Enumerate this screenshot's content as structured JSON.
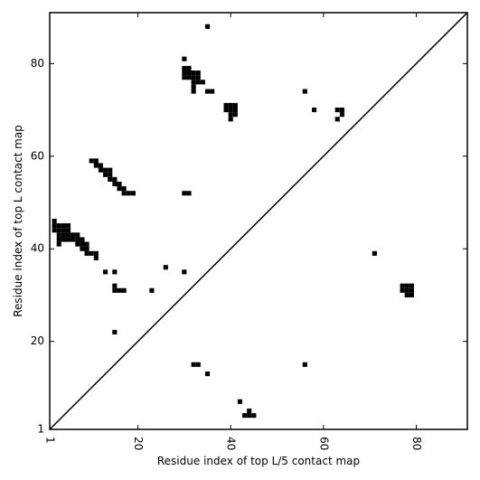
{
  "chart_data": {
    "type": "heatmap",
    "title": "",
    "xlabel": "Residue index of top L/5 contact map",
    "ylabel": "Residue index of top L contact map",
    "xlim": [
      1,
      91
    ],
    "ylim": [
      1,
      91
    ],
    "xticks": [
      1,
      20,
      40,
      60,
      80
    ],
    "yticks": [
      1,
      20,
      40,
      60,
      80
    ],
    "grid": false,
    "legend": "none",
    "diagonal": {
      "from": [
        1,
        1
      ],
      "to": [
        91,
        91
      ]
    },
    "cell_color": "#000000",
    "contacts": [
      [
        35,
        88
      ],
      [
        30,
        81
      ],
      [
        30,
        79
      ],
      [
        31,
        79
      ],
      [
        30,
        78
      ],
      [
        31,
        78
      ],
      [
        32,
        78
      ],
      [
        33,
        78
      ],
      [
        30,
        77
      ],
      [
        31,
        77
      ],
      [
        32,
        77
      ],
      [
        33,
        77
      ],
      [
        32,
        76
      ],
      [
        33,
        76
      ],
      [
        34,
        76
      ],
      [
        32,
        75
      ],
      [
        35,
        74
      ],
      [
        36,
        74
      ],
      [
        32,
        74
      ],
      [
        39,
        71
      ],
      [
        40,
        71
      ],
      [
        41,
        71
      ],
      [
        39,
        70
      ],
      [
        40,
        70
      ],
      [
        41,
        70
      ],
      [
        40,
        69
      ],
      [
        41,
        69
      ],
      [
        40,
        68
      ],
      [
        56,
        74
      ],
      [
        58,
        70
      ],
      [
        63,
        70
      ],
      [
        64,
        70
      ],
      [
        64,
        69
      ],
      [
        63,
        68
      ],
      [
        10,
        59
      ],
      [
        11,
        59
      ],
      [
        11,
        58
      ],
      [
        12,
        58
      ],
      [
        12,
        57
      ],
      [
        13,
        57
      ],
      [
        14,
        57
      ],
      [
        13,
        56
      ],
      [
        14,
        56
      ],
      [
        14,
        55
      ],
      [
        15,
        55
      ],
      [
        15,
        54
      ],
      [
        16,
        54
      ],
      [
        16,
        53
      ],
      [
        17,
        53
      ],
      [
        17,
        52
      ],
      [
        18,
        52
      ],
      [
        19,
        52
      ],
      [
        30,
        52
      ],
      [
        31,
        52
      ],
      [
        2,
        46
      ],
      [
        2,
        45
      ],
      [
        3,
        45
      ],
      [
        4,
        45
      ],
      [
        5,
        45
      ],
      [
        2,
        44
      ],
      [
        3,
        44
      ],
      [
        4,
        44
      ],
      [
        5,
        44
      ],
      [
        3,
        43
      ],
      [
        4,
        43
      ],
      [
        5,
        43
      ],
      [
        6,
        43
      ],
      [
        7,
        43
      ],
      [
        3,
        42
      ],
      [
        4,
        42
      ],
      [
        5,
        42
      ],
      [
        6,
        42
      ],
      [
        7,
        42
      ],
      [
        8,
        42
      ],
      [
        3,
        41
      ],
      [
        7,
        41
      ],
      [
        8,
        41
      ],
      [
        9,
        41
      ],
      [
        8,
        40
      ],
      [
        9,
        40
      ],
      [
        9,
        39
      ],
      [
        10,
        39
      ],
      [
        11,
        39
      ],
      [
        11,
        38
      ],
      [
        71,
        39
      ],
      [
        26,
        36
      ],
      [
        13,
        35
      ],
      [
        15,
        35
      ],
      [
        30,
        35
      ],
      [
        15,
        32
      ],
      [
        77,
        32
      ],
      [
        78,
        32
      ],
      [
        79,
        32
      ],
      [
        15,
        31
      ],
      [
        16,
        31
      ],
      [
        17,
        31
      ],
      [
        23,
        31
      ],
      [
        77,
        31
      ],
      [
        78,
        31
      ],
      [
        79,
        31
      ],
      [
        78,
        30
      ],
      [
        79,
        30
      ],
      [
        15,
        22
      ],
      [
        32,
        15
      ],
      [
        33,
        15
      ],
      [
        56,
        15
      ],
      [
        35,
        13
      ],
      [
        42,
        7
      ],
      [
        44,
        5
      ],
      [
        43,
        4
      ],
      [
        44,
        4
      ],
      [
        45,
        4
      ]
    ]
  }
}
